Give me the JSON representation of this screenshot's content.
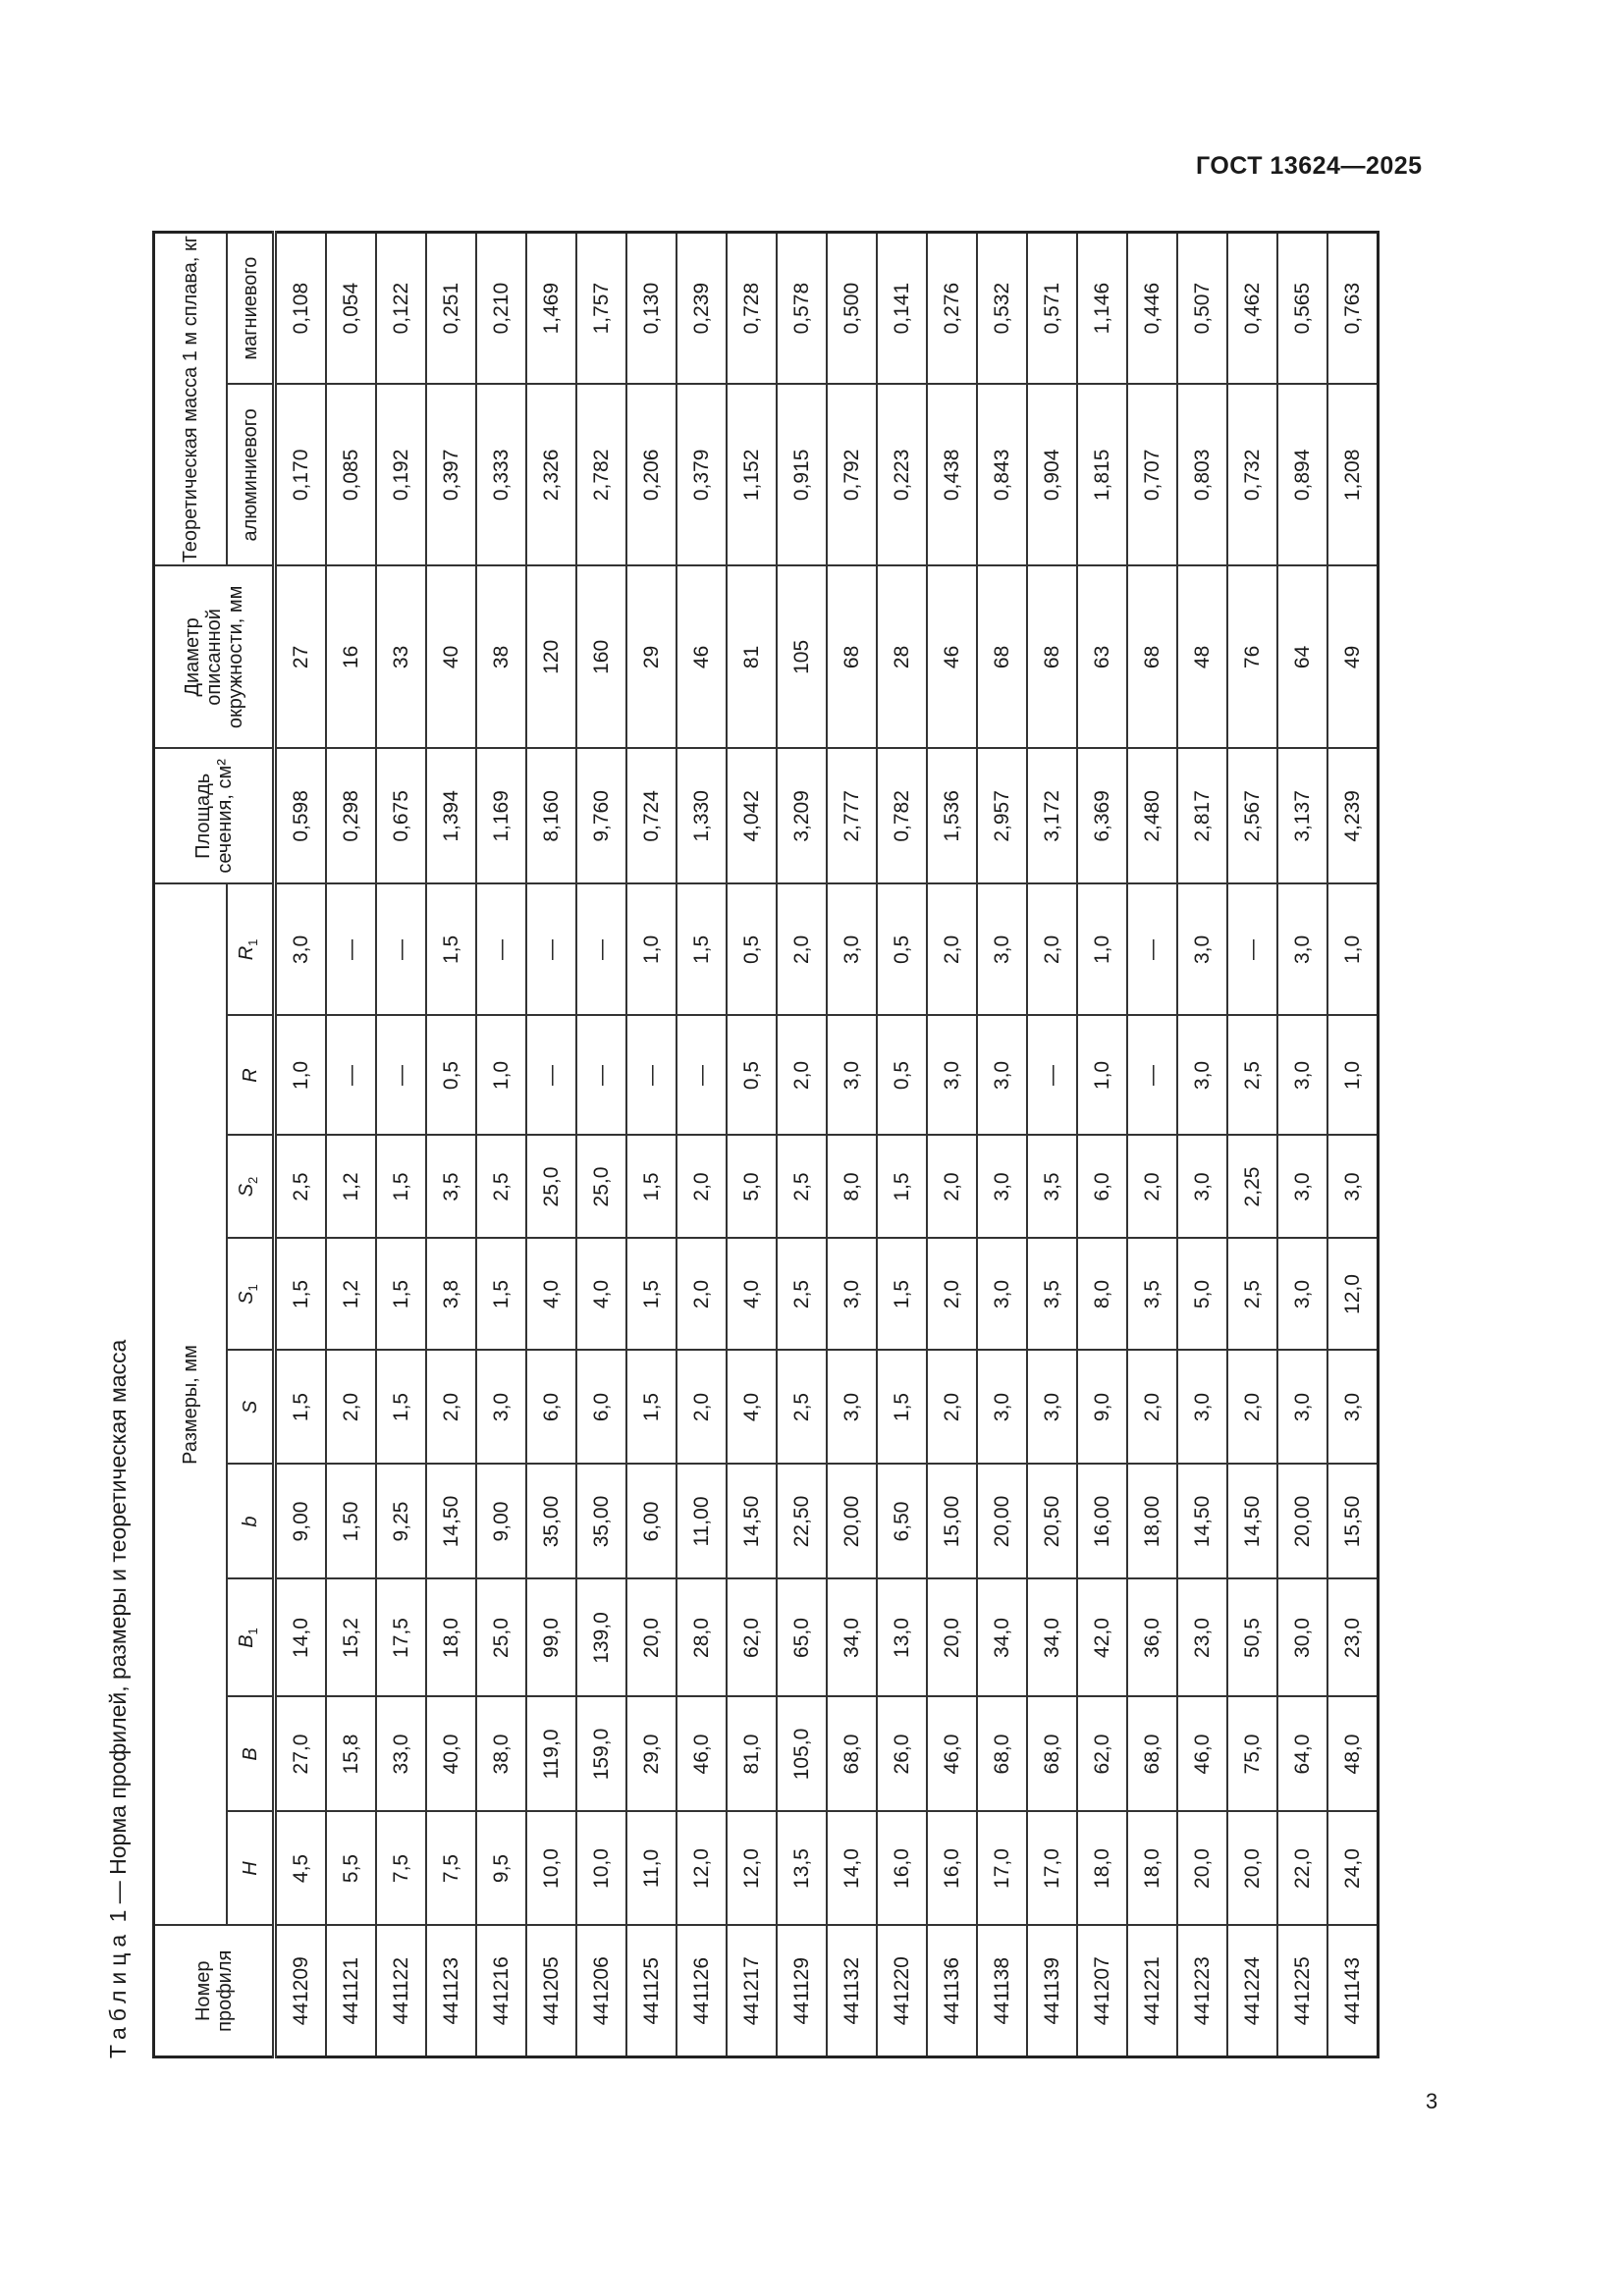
{
  "header": {
    "doc_code": "ГОСТ 13624—2025"
  },
  "footer": {
    "page_number": "3"
  },
  "table": {
    "caption_label": "Таблица",
    "caption_number": "1",
    "caption_text": "— Норма профилей, размеры и теоретическая масса",
    "headers": {
      "profile_number": "Номер профиля",
      "dimensions_group": "Размеры, мм",
      "area": "Площадь сечения, см²",
      "diameter": "Диаметр описанной окружности, мм",
      "mass_group": "Теоретическая масса 1 м сплава, кг",
      "aluminum": "алюминиевого",
      "magnesium": "магниевого",
      "dims": [
        {
          "sym": "H",
          "sub": ""
        },
        {
          "sym": "B",
          "sub": ""
        },
        {
          "sym": "B",
          "sub": "1"
        },
        {
          "sym": "b",
          "sub": ""
        },
        {
          "sym": "S",
          "sub": ""
        },
        {
          "sym": "S",
          "sub": "1"
        },
        {
          "sym": "S",
          "sub": "2"
        },
        {
          "sym": "R",
          "sub": ""
        },
        {
          "sym": "R",
          "sub": "1"
        }
      ]
    },
    "rows": [
      [
        "441209",
        "4,5",
        "27,0",
        "14,0",
        "9,00",
        "1,5",
        "1,5",
        "2,5",
        "1,0",
        "3,0",
        "0,598",
        "27",
        "0,170",
        "0,108"
      ],
      [
        "441121",
        "5,5",
        "15,8",
        "15,2",
        "1,50",
        "2,0",
        "1,2",
        "1,2",
        "—",
        "—",
        "0,298",
        "16",
        "0,085",
        "0,054"
      ],
      [
        "441122",
        "7,5",
        "33,0",
        "17,5",
        "9,25",
        "1,5",
        "1,5",
        "1,5",
        "—",
        "—",
        "0,675",
        "33",
        "0,192",
        "0,122"
      ],
      [
        "441123",
        "7,5",
        "40,0",
        "18,0",
        "14,50",
        "2,0",
        "3,8",
        "3,5",
        "0,5",
        "1,5",
        "1,394",
        "40",
        "0,397",
        "0,251"
      ],
      [
        "441216",
        "9,5",
        "38,0",
        "25,0",
        "9,00",
        "3,0",
        "1,5",
        "2,5",
        "1,0",
        "—",
        "1,169",
        "38",
        "0,333",
        "0,210"
      ],
      [
        "441205",
        "10,0",
        "119,0",
        "99,0",
        "35,00",
        "6,0",
        "4,0",
        "25,0",
        "—",
        "—",
        "8,160",
        "120",
        "2,326",
        "1,469"
      ],
      [
        "441206",
        "10,0",
        "159,0",
        "139,0",
        "35,00",
        "6,0",
        "4,0",
        "25,0",
        "—",
        "—",
        "9,760",
        "160",
        "2,782",
        "1,757"
      ],
      [
        "441125",
        "11,0",
        "29,0",
        "20,0",
        "6,00",
        "1,5",
        "1,5",
        "1,5",
        "—",
        "1,0",
        "0,724",
        "29",
        "0,206",
        "0,130"
      ],
      [
        "441126",
        "12,0",
        "46,0",
        "28,0",
        "11,00",
        "2,0",
        "2,0",
        "2,0",
        "—",
        "1,5",
        "1,330",
        "46",
        "0,379",
        "0,239"
      ],
      [
        "441217",
        "12,0",
        "81,0",
        "62,0",
        "14,50",
        "4,0",
        "4,0",
        "5,0",
        "0,5",
        "0,5",
        "4,042",
        "81",
        "1,152",
        "0,728"
      ],
      [
        "441129",
        "13,5",
        "105,0",
        "65,0",
        "22,50",
        "2,5",
        "2,5",
        "2,5",
        "2,0",
        "2,0",
        "3,209",
        "105",
        "0,915",
        "0,578"
      ],
      [
        "441132",
        "14,0",
        "68,0",
        "34,0",
        "20,00",
        "3,0",
        "3,0",
        "8,0",
        "3,0",
        "3,0",
        "2,777",
        "68",
        "0,792",
        "0,500"
      ],
      [
        "441220",
        "16,0",
        "26,0",
        "13,0",
        "6,50",
        "1,5",
        "1,5",
        "1,5",
        "0,5",
        "0,5",
        "0,782",
        "28",
        "0,223",
        "0,141"
      ],
      [
        "441136",
        "16,0",
        "46,0",
        "20,0",
        "15,00",
        "2,0",
        "2,0",
        "2,0",
        "3,0",
        "2,0",
        "1,536",
        "46",
        "0,438",
        "0,276"
      ],
      [
        "441138",
        "17,0",
        "68,0",
        "34,0",
        "20,00",
        "3,0",
        "3,0",
        "3,0",
        "3,0",
        "3,0",
        "2,957",
        "68",
        "0,843",
        "0,532"
      ],
      [
        "441139",
        "17,0",
        "68,0",
        "34,0",
        "20,50",
        "3,0",
        "3,5",
        "3,5",
        "—",
        "2,0",
        "3,172",
        "68",
        "0,904",
        "0,571"
      ],
      [
        "441207",
        "18,0",
        "62,0",
        "42,0",
        "16,00",
        "9,0",
        "8,0",
        "6,0",
        "1,0",
        "1,0",
        "6,369",
        "63",
        "1,815",
        "1,146"
      ],
      [
        "441221",
        "18,0",
        "68,0",
        "36,0",
        "18,00",
        "2,0",
        "3,5",
        "2,0",
        "—",
        "—",
        "2,480",
        "68",
        "0,707",
        "0,446"
      ],
      [
        "441223",
        "20,0",
        "46,0",
        "23,0",
        "14,50",
        "3,0",
        "5,0",
        "3,0",
        "3,0",
        "3,0",
        "2,817",
        "48",
        "0,803",
        "0,507"
      ],
      [
        "441224",
        "20,0",
        "75,0",
        "50,5",
        "14,50",
        "2,0",
        "2,5",
        "2,25",
        "2,5",
        "—",
        "2,567",
        "76",
        "0,732",
        "0,462"
      ],
      [
        "441225",
        "22,0",
        "64,0",
        "30,0",
        "20,00",
        "3,0",
        "3,0",
        "3,0",
        "3,0",
        "3,0",
        "3,137",
        "64",
        "0,894",
        "0,565"
      ],
      [
        "441143",
        "24,0",
        "48,0",
        "23,0",
        "15,50",
        "3,0",
        "12,0",
        "3,0",
        "1,0",
        "1,0",
        "4,239",
        "49",
        "1,208",
        "0,763"
      ]
    ]
  }
}
